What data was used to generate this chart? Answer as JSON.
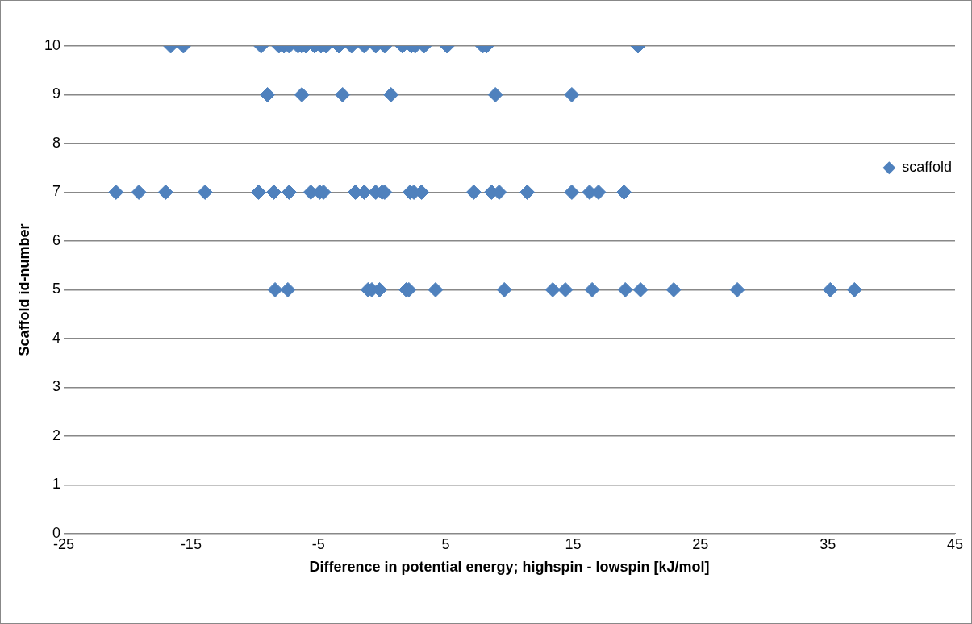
{
  "chart_data": {
    "type": "scatter",
    "xlabel": "Difference in potential energy; highspin - lowspin [kJ/mol]",
    "ylabel": "Scaffold id-number",
    "xlim": [
      -25,
      45
    ],
    "xticks": [
      -25,
      -15,
      -5,
      5,
      15,
      25,
      35,
      45
    ],
    "ylim": [
      0,
      10
    ],
    "yticks": [
      0,
      1,
      2,
      3,
      4,
      5,
      6,
      7,
      8,
      9,
      10
    ],
    "grid": "y",
    "legend": "right",
    "marker": "diamond",
    "series": [
      {
        "name": "scaffold",
        "color": "#4f81bd",
        "x": [
          -16.6,
          -15.6,
          -9.5,
          -8.1,
          -7.7,
          -7.3,
          -6.6,
          -6.3,
          -6.0,
          -5.3,
          -4.8,
          -4.4,
          -3.4,
          -2.4,
          -1.4,
          -0.5,
          0.2,
          1.6,
          2.3,
          2.6,
          3.3,
          5.1,
          7.9,
          8.2,
          20.1,
          -9.0,
          -6.3,
          -3.1,
          0.7,
          8.9,
          14.9,
          -20.9,
          -19.1,
          -17.0,
          -13.9,
          -9.7,
          -8.5,
          -7.3,
          -5.6,
          -4.9,
          -4.6,
          -2.1,
          -1.4,
          -0.5,
          0.0,
          0.2,
          2.2,
          2.5,
          3.1,
          7.2,
          8.6,
          9.2,
          11.4,
          14.9,
          16.3,
          17.0,
          19.0,
          -8.4,
          -7.4,
          -1.1,
          -0.8,
          -0.2,
          1.9,
          2.1,
          4.2,
          9.6,
          13.4,
          14.4,
          16.5,
          19.1,
          20.3,
          22.9,
          27.9,
          35.2,
          37.1
        ],
        "values": [
          10,
          10,
          10,
          10,
          10,
          10,
          10,
          10,
          10,
          10,
          10,
          10,
          10,
          10,
          10,
          10,
          10,
          10,
          10,
          10,
          10,
          10,
          10,
          10,
          10,
          9,
          9,
          9,
          9,
          9,
          9,
          7,
          7,
          7,
          7,
          7,
          7,
          7,
          7,
          7,
          7,
          7,
          7,
          7,
          7,
          7,
          7,
          7,
          7,
          7,
          7,
          7,
          7,
          7,
          7,
          7,
          7,
          5,
          5,
          5,
          5,
          5,
          5,
          5,
          5,
          5,
          5,
          5,
          5,
          5,
          5,
          5,
          5,
          5,
          5
        ]
      }
    ]
  }
}
